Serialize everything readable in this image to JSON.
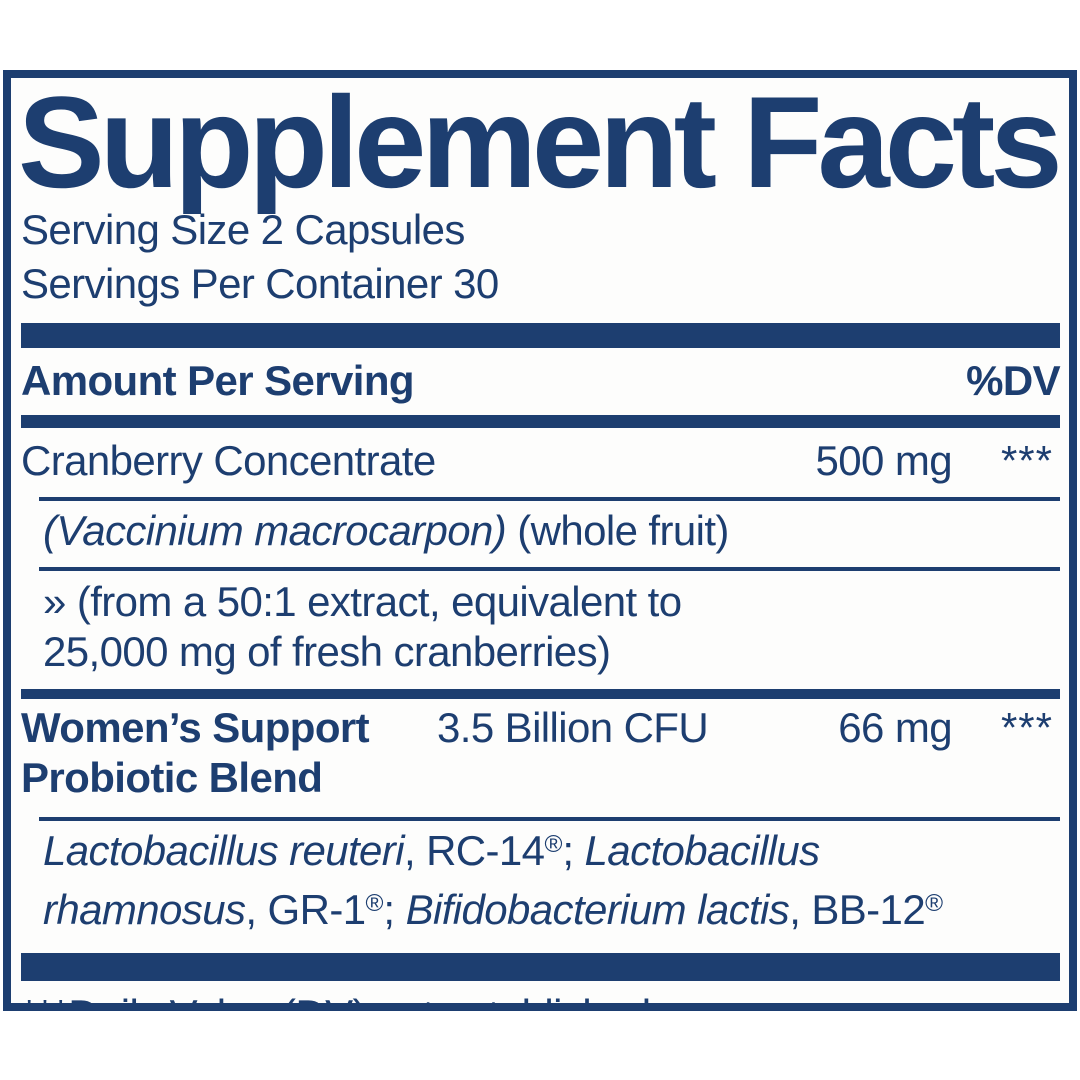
{
  "colors": {
    "navy": "#1d3e70",
    "panel_bg": "#fdfdfc",
    "page_bg": "#ffffff"
  },
  "panel": {
    "title": "Supplement Facts",
    "serving_size": "Serving Size 2 Capsules",
    "servings_per_container": "Servings Per Container 30",
    "header": {
      "amount_label": "Amount Per Serving",
      "dv_label": "%DV"
    },
    "rows": [
      {
        "name": "Cranberry Concentrate",
        "amount": "500 mg",
        "dv": "***",
        "botanical": [
          {
            "text": "(Vaccinium macrocarpon)",
            "italic": true
          },
          {
            "text": " (whole fruit)",
            "italic": false
          }
        ],
        "extract_line1": "» (from a 50:1 extract, equivalent to",
        "extract_line2": "25,000 mg of fresh cranberries)"
      },
      {
        "name_line1": "Women’s Support",
        "name_line2": "Probiotic Blend",
        "cfu": "3.5 Billion CFU",
        "amount": "66 mg",
        "dv": "***",
        "strains": [
          {
            "text": "Lactobacillus reuteri",
            "italic": true
          },
          {
            "text": ", RC-14",
            "italic": false
          },
          {
            "text": "®",
            "italic": false,
            "sup": true
          },
          {
            "text": "; ",
            "italic": false
          },
          {
            "text": "Lactobacillus",
            "italic": true
          },
          {
            "break": true
          },
          {
            "text": "rhamnosus",
            "italic": true
          },
          {
            "text": ", GR-1",
            "italic": false
          },
          {
            "text": "®",
            "italic": false,
            "sup": true
          },
          {
            "text": "; ",
            "italic": false
          },
          {
            "text": "Bifidobacterium lactis",
            "italic": true
          },
          {
            "text": ", BB-12",
            "italic": false
          },
          {
            "text": "®",
            "italic": false,
            "sup": true
          }
        ]
      }
    ],
    "footnote": "***Daily Value (DV) not established."
  }
}
